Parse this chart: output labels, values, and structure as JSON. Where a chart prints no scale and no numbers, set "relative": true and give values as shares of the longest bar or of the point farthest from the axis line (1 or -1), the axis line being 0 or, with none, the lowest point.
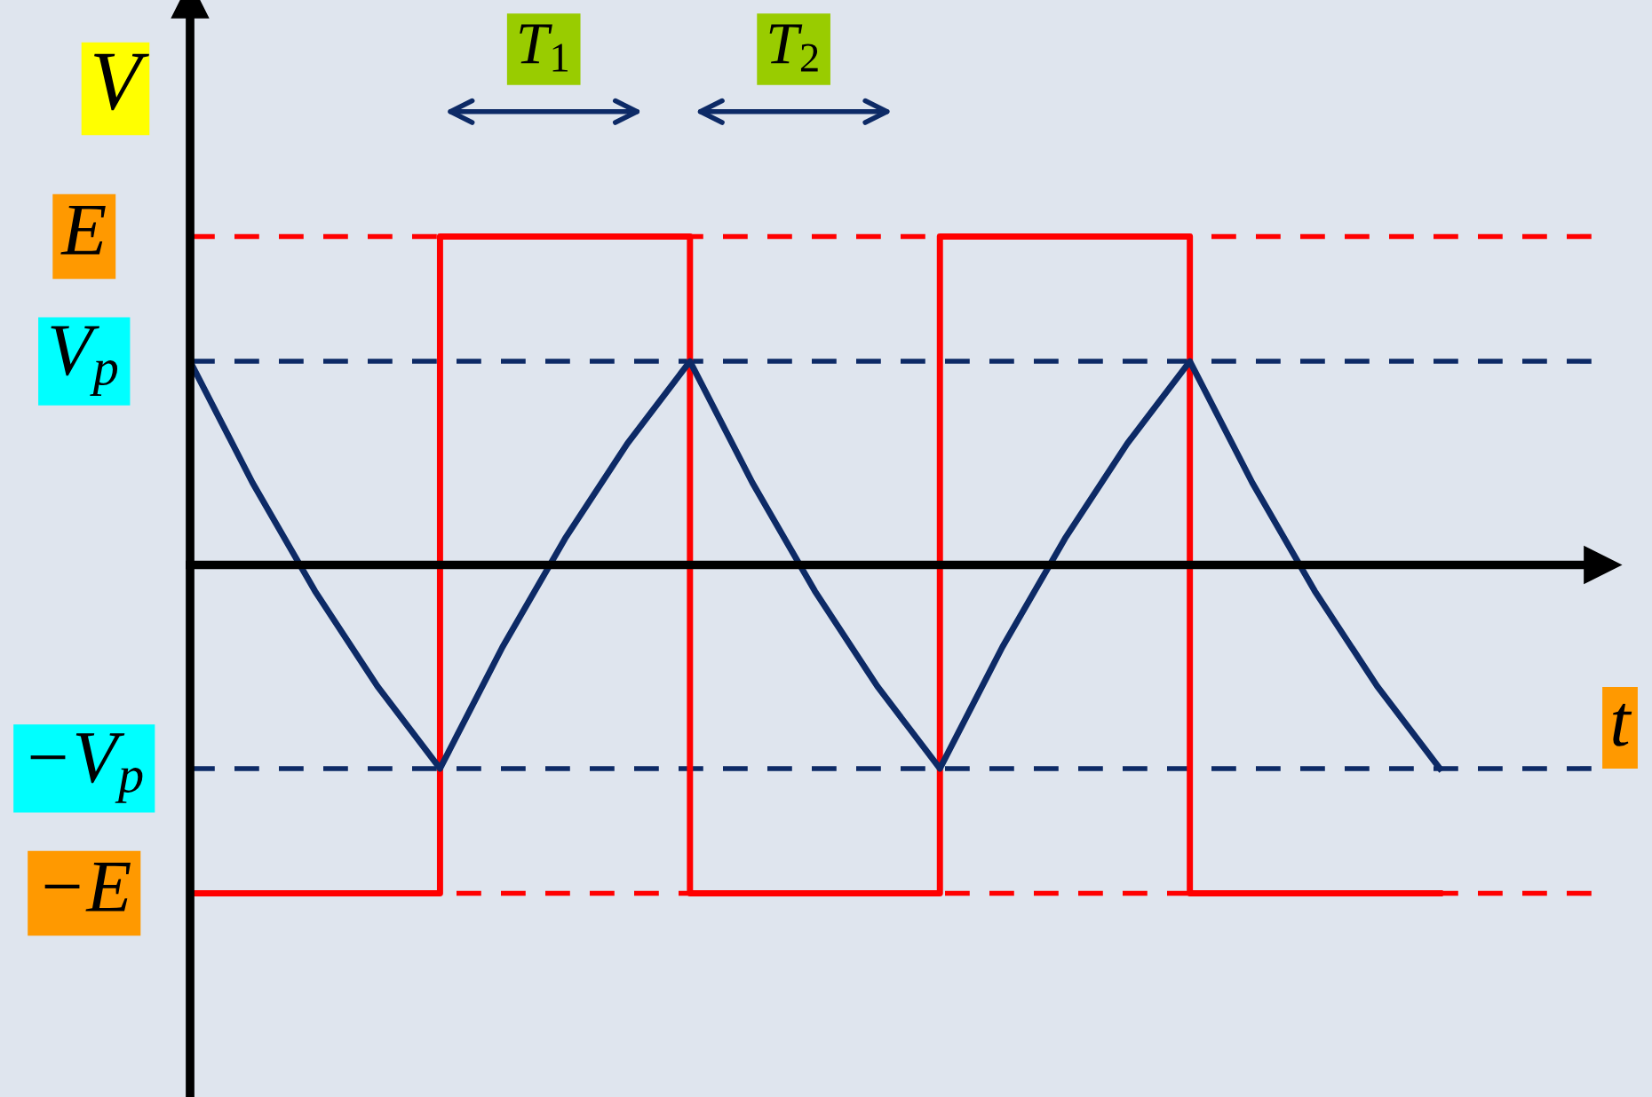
{
  "chart_data": {
    "type": "line",
    "relative": true,
    "ylabel": "V",
    "xlabel": "t",
    "categories": [
      null,
      null,
      null,
      null,
      null,
      null,
      null,
      null,
      null,
      null,
      null,
      null,
      null,
      null,
      null,
      null,
      null,
      null,
      null,
      null,
      null
    ],
    "grid": false,
    "annotations": [
      "T$_{1}$",
      "T$_{2}$"
    ],
    "series": [
      {
        "type": "step",
        "color": "#ff0000",
        "values": [
          -1,
          -1,
          -1,
          -1,
          1,
          1,
          1,
          1,
          -1,
          -1,
          -1,
          -1,
          1,
          1,
          1,
          1,
          -1,
          -1,
          -1,
          -1,
          -1
        ]
      },
      {
        "color": "#0d2a66",
        "values": [
          0.62,
          0.25,
          -0.08,
          -0.37,
          -0.62,
          -0.25,
          0.08,
          0.37,
          0.62,
          0.25,
          -0.08,
          -0.37,
          -0.62,
          -0.25,
          0.08,
          0.37,
          0.62,
          0.25,
          -0.08,
          -0.37,
          -0.62
        ]
      }
    ],
    "ref_lines": [
      {
        "axis": "y",
        "value": 1,
        "label": "E",
        "color": "#ff0000",
        "line_style": "dashed"
      },
      {
        "axis": "y",
        "value": 0.62,
        "label": "V$_{p}$",
        "color": "#0d2a66",
        "line_style": "dashed"
      },
      {
        "axis": "y",
        "value": -0.62,
        "label": "−V$_{p}$",
        "color": "#0d2a66",
        "line_style": "dashed"
      },
      {
        "axis": "y",
        "value": -1,
        "label": "−E",
        "color": "#ff0000",
        "line_style": "dashed"
      }
    ]
  }
}
